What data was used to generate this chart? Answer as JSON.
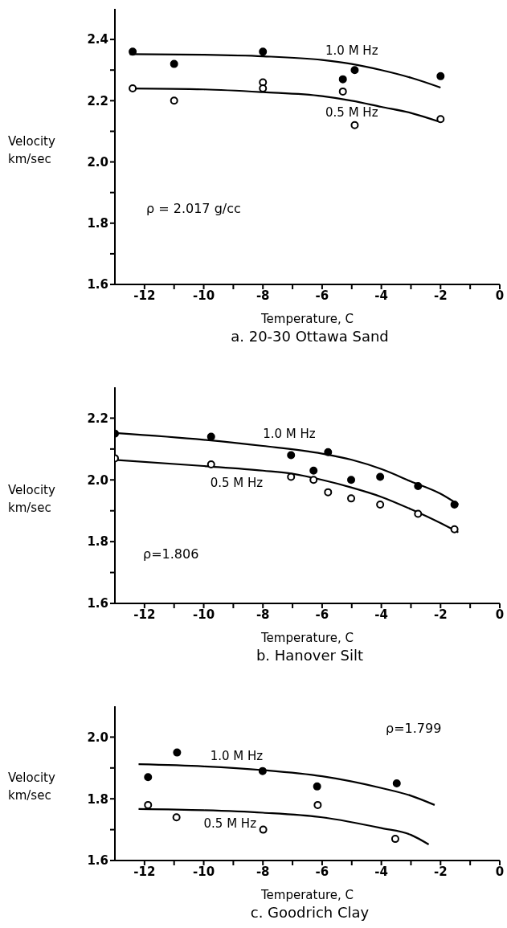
{
  "chart_data": [
    {
      "type": "line",
      "title": "a. 20-30 Ottawa Sand",
      "xlabel": "Temperature, C",
      "ylabel": "Velocity km/sec",
      "annotations": [
        "ρ = 2.017 g/cc"
      ],
      "legend": false,
      "grid": false,
      "xlim": [
        -13,
        0
      ],
      "xticks": [
        -12,
        {
          "value": -11,
          "label": null
        },
        -10,
        {
          "value": -9,
          "label": null
        },
        -8,
        {
          "value": -7,
          "label": null
        },
        -6,
        {
          "value": -5,
          "label": null
        },
        -4,
        {
          "value": -3,
          "label": null
        },
        -2,
        {
          "value": -1,
          "label": null
        },
        0
      ],
      "ylim": [
        1.6,
        2.5
      ],
      "yticks": [
        1.6,
        {
          "value": 1.7,
          "label": null
        },
        1.8,
        {
          "value": 1.9,
          "label": null
        },
        {
          "value": 2.0,
          "label": "2.0"
        },
        {
          "value": 2.1,
          "label": null
        },
        2.2,
        {
          "value": 2.3,
          "label": null
        },
        2.4
      ],
      "series": [
        {
          "name": "1.0 M Hz",
          "color": "#000000",
          "marker": "none",
          "x": [
            -12.5,
            -10,
            -8,
            -6,
            -5,
            -4,
            -3,
            -2
          ],
          "values": [
            2.352,
            2.35,
            2.345,
            2.333,
            2.32,
            2.3,
            2.275,
            2.243
          ]
        },
        {
          "name": "0.5 M Hz",
          "color": "#000000",
          "marker": "none",
          "x": [
            -12.5,
            -10,
            -8,
            -6,
            -5,
            -4,
            -3,
            -2
          ],
          "values": [
            2.24,
            2.237,
            2.228,
            2.215,
            2.2,
            2.18,
            2.16,
            2.13
          ]
        },
        {
          "type": "scatter",
          "color": "#000000",
          "marker": "circle",
          "x": [
            -12.4,
            -11,
            -8,
            -5.3,
            -4.9,
            -2
          ],
          "values": [
            2.36,
            2.32,
            2.36,
            2.27,
            2.3,
            2.28
          ]
        },
        {
          "type": "scatter",
          "color": "#000000",
          "marker": "circle",
          "x": [
            -12.4,
            -11,
            -8,
            -8,
            -5.3,
            -4.9,
            -2
          ],
          "values": [
            2.24,
            2.2,
            2.26,
            2.24,
            2.23,
            2.12,
            2.14
          ]
        }
      ]
    },
    {
      "type": "line",
      "title": "b. Hanover Silt",
      "xlabel": "Temperature, C",
      "ylabel": "Velocity km/sec",
      "annotations": [
        "ρ=1.806"
      ],
      "legend": false,
      "grid": false,
      "xlim": [
        -13,
        0
      ],
      "xticks": [
        -12,
        {
          "value": -11,
          "label": null
        },
        -10,
        {
          "value": -9,
          "label": null
        },
        -8,
        {
          "value": -7,
          "label": null
        },
        -6,
        {
          "value": -5,
          "label": null
        },
        -4,
        {
          "value": -3,
          "label": null
        },
        -2,
        {
          "value": -1,
          "label": null
        },
        0
      ],
      "ylim": [
        1.6,
        2.3
      ],
      "yticks": [
        1.6,
        {
          "value": 1.7,
          "label": null
        },
        1.8,
        {
          "value": 1.9,
          "label": null
        },
        {
          "value": 2.0,
          "label": "2.0"
        },
        {
          "value": 2.1,
          "label": null
        },
        2.2
      ],
      "series": [
        {
          "name": "1.0 M Hz",
          "color": "#000000",
          "marker": "none",
          "x": [
            -13,
            -10,
            -8,
            -6,
            -5,
            -4,
            -3,
            -2,
            -1.4
          ],
          "values": [
            2.152,
            2.13,
            2.11,
            2.085,
            2.065,
            2.035,
            1.995,
            1.955,
            1.92
          ]
        },
        {
          "name": "0.5 M Hz",
          "color": "#000000",
          "marker": "none",
          "x": [
            -13,
            -10,
            -8,
            -7,
            -6,
            -5,
            -4,
            -3,
            -2,
            -1.4
          ],
          "values": [
            2.065,
            2.045,
            2.03,
            2.02,
            2.0,
            1.975,
            1.945,
            1.905,
            1.86,
            1.83
          ]
        },
        {
          "type": "scatter",
          "color": "#000000",
          "marker": "circle",
          "x": [
            -13,
            -9.75,
            -7.05,
            -6.29,
            -5.8,
            -5.02,
            -4.04,
            -2.76,
            -1.53
          ],
          "values": [
            2.15,
            2.14,
            2.08,
            2.03,
            2.09,
            2.0,
            2.01,
            1.98,
            1.92
          ]
        },
        {
          "type": "scatter",
          "color": "#000000",
          "marker": "circle",
          "x": [
            -13,
            -9.75,
            -7.05,
            -6.29,
            -5.8,
            -5.02,
            -4.04,
            -2.76,
            -1.53
          ],
          "values": [
            2.07,
            2.05,
            2.01,
            2.0,
            1.96,
            1.94,
            1.92,
            1.89,
            1.84
          ]
        }
      ]
    },
    {
      "type": "line",
      "title": "c. Goodrich Clay",
      "xlabel": "Temperature, C",
      "ylabel": "Velocity km/sec",
      "annotations": [
        "ρ=1.799"
      ],
      "legend": false,
      "grid": false,
      "xlim": [
        -13,
        0
      ],
      "xticks": [
        -12,
        {
          "value": -11,
          "label": null
        },
        -10,
        {
          "value": -9,
          "label": null
        },
        -8,
        {
          "value": -7,
          "label": null
        },
        -6,
        {
          "value": -5,
          "label": null
        },
        -4,
        {
          "value": -3,
          "label": null
        },
        -2,
        {
          "value": -1,
          "label": null
        },
        0
      ],
      "ylim": [
        1.6,
        2.1
      ],
      "yticks": [
        1.6,
        {
          "value": 1.7,
          "label": null
        },
        1.8,
        {
          "value": 1.9,
          "label": null
        },
        {
          "value": 2.0,
          "label": "2.0"
        }
      ],
      "series": [
        {
          "name": "1.0 M Hz",
          "color": "#000000",
          "marker": "none",
          "x": [
            -12.2,
            -10,
            -8,
            -6,
            -4,
            -3,
            -2.2
          ],
          "values": [
            1.912,
            1.905,
            1.893,
            1.873,
            1.835,
            1.81,
            1.78
          ]
        },
        {
          "name": "0.5 M Hz",
          "color": "#000000",
          "marker": "none",
          "x": [
            -12.2,
            -10,
            -8,
            -6,
            -4,
            -3,
            -2.4
          ],
          "values": [
            1.767,
            1.763,
            1.755,
            1.74,
            1.705,
            1.683,
            1.652
          ]
        },
        {
          "type": "scatter",
          "color": "#000000",
          "marker": "circle",
          "x": [
            -11.88,
            -10.9,
            -8.01,
            -6.17,
            -3.48
          ],
          "values": [
            1.87,
            1.95,
            1.89,
            1.84,
            1.85
          ]
        },
        {
          "type": "scatter",
          "color": "#000000",
          "marker": "circle",
          "x": [
            -11.88,
            -10.92,
            -7.99,
            -6.15,
            -3.53
          ],
          "values": [
            1.78,
            1.74,
            1.7,
            1.78,
            1.67
          ]
        }
      ]
    }
  ]
}
